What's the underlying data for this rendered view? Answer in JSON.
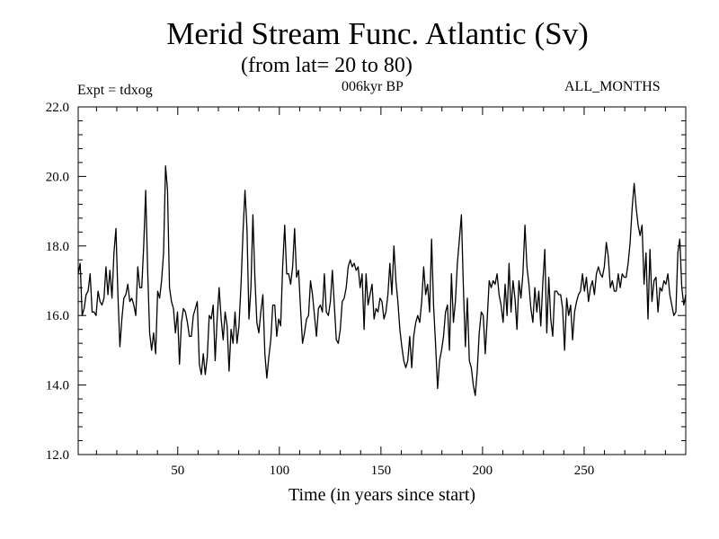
{
  "header": {
    "title": "Merid Stream Func. Atlantic (Sv)",
    "subtitle": "(from lat= 20 to 80)",
    "experiment": "Expt = tdxog",
    "period": "006kyr BP",
    "months": "ALL_MONTHS"
  },
  "chart_data": {
    "type": "line",
    "title": "Merid Stream Func. Atlantic (Sv)",
    "xlabel": "Time (in years since start)",
    "ylabel": "",
    "xlim": [
      1,
      300
    ],
    "ylim": [
      12.0,
      22.0
    ],
    "xticks": [
      50,
      100,
      150,
      200,
      250
    ],
    "xtick_labels": [
      "50",
      "100",
      "150",
      "200",
      "250"
    ],
    "yticks": [
      12.0,
      14.0,
      16.0,
      18.0,
      20.0,
      22.0
    ],
    "ytick_labels": [
      "12.0",
      "14.0",
      "16.0",
      "18.0",
      "20.0",
      "22.0"
    ],
    "grid": false,
    "series": [
      {
        "values": [
          17.2,
          17.5,
          16.0,
          16.2,
          16.6,
          16.7,
          17.2,
          16.1,
          16.1,
          16.0,
          16.7,
          16.4,
          16.3,
          16.5,
          17.4,
          16.6,
          17.3,
          16.5,
          17.8,
          18.5,
          16.6,
          15.1,
          15.9,
          16.5,
          16.6,
          16.9,
          16.4,
          16.5,
          16.3,
          16.0,
          17.4,
          16.8,
          16.8,
          18.0,
          19.6,
          17.3,
          15.5,
          15.0,
          15.5,
          14.9,
          16.7,
          16.5,
          17.0,
          17.8,
          20.3,
          19.6,
          16.8,
          16.4,
          16.2,
          15.5,
          16.1,
          14.6,
          15.8,
          16.2,
          16.1,
          15.8,
          15.4,
          15.4,
          16.0,
          16.2,
          16.4,
          14.6,
          14.3,
          14.9,
          14.3,
          14.8,
          16.0,
          15.9,
          16.3,
          14.7,
          15.9,
          16.8,
          15.9,
          15.3,
          16.1,
          15.7,
          14.4,
          15.6,
          15.2,
          16.1,
          15.2,
          15.7,
          16.9,
          18.4,
          19.6,
          18.5,
          15.9,
          16.8,
          18.9,
          17.1,
          15.8,
          15.5,
          16.1,
          16.6,
          14.9,
          14.2,
          14.8,
          15.3,
          16.3,
          16.3,
          15.4,
          15.9,
          15.7,
          17.4,
          18.6,
          17.2,
          17.2,
          16.9,
          17.4,
          18.5,
          17.1,
          17.3,
          16.2,
          15.2,
          15.5,
          15.9,
          16.0,
          17.0,
          16.6,
          16.0,
          15.4,
          16.2,
          16.3,
          16.1,
          17.2,
          16.1,
          16.0,
          16.4,
          17.3,
          16.3,
          15.3,
          15.2,
          15.6,
          16.4,
          16.5,
          16.8,
          17.4,
          17.6,
          17.4,
          17.5,
          17.3,
          17.4,
          16.8,
          17.2,
          15.6,
          17.2,
          16.3,
          16.6,
          16.9,
          15.9,
          16.2,
          16.1,
          16.5,
          16.4,
          15.9,
          16.1,
          16.6,
          17.5,
          16.6,
          18.0,
          17.0,
          16.4,
          15.6,
          15.1,
          14.7,
          14.5,
          14.7,
          15.4,
          14.5,
          15.4,
          15.8,
          16.0,
          15.8,
          16.4,
          17.4,
          16.6,
          16.9,
          16.1,
          18.2,
          16.3,
          15.2,
          13.9,
          14.7,
          15.0,
          15.4,
          16.1,
          16.3,
          15.0,
          17.2,
          15.8,
          16.4,
          17.5,
          18.2,
          18.9,
          16.8,
          15.1,
          16.5,
          14.7,
          14.5,
          14.0,
          13.7,
          14.4,
          15.5,
          16.1,
          16.0,
          14.9,
          15.9,
          17.0,
          16.8,
          17.0,
          16.9,
          17.2,
          16.6,
          16.3,
          15.8,
          16.9,
          16.0,
          17.5,
          16.1,
          17.0,
          16.5,
          15.6,
          17.0,
          16.5,
          17.2,
          18.6,
          17.4,
          16.9,
          16.2,
          15.8,
          16.8,
          16.1,
          16.7,
          15.7,
          16.9,
          17.9,
          15.5,
          17.1,
          15.9,
          15.4,
          16.7,
          16.7,
          16.6,
          16.6,
          16.2,
          15.0,
          16.5,
          16.0,
          16.3,
          15.3,
          16.1,
          16.4,
          16.6,
          16.7,
          17.2,
          16.7,
          17.1,
          16.4,
          16.8,
          17.0,
          16.6,
          17.2,
          17.4,
          17.2,
          17.1,
          17.4,
          18.1,
          17.7,
          16.8,
          17.0,
          16.7,
          16.7,
          17.2,
          16.8,
          17.2,
          17.1,
          17.1,
          17.5,
          18.1,
          19.1,
          19.8,
          19.1,
          18.6,
          18.3,
          18.6,
          16.9,
          17.8,
          15.9,
          17.9,
          16.4,
          17.0,
          17.1,
          16.1,
          16.8,
          16.7,
          17.0,
          16.9,
          17.2,
          16.6,
          16.3,
          16.0,
          16.1,
          17.8,
          18.2,
          16.8,
          16.3,
          16.6
        ],
        "color": "#000000"
      }
    ]
  }
}
